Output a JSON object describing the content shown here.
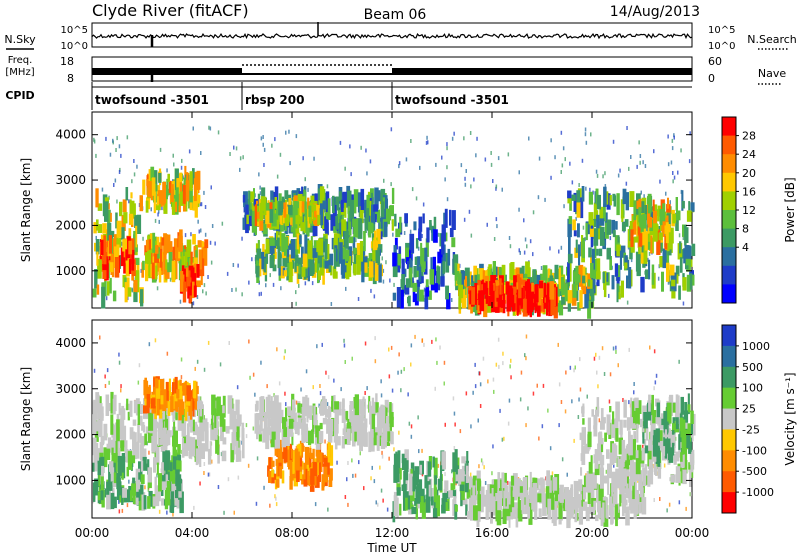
{
  "header": {
    "title": "Clyde River (fitACF)",
    "beam": "Beam 06",
    "date": "14/Aug/2013"
  },
  "noise_panel": {
    "left_label": "N.Sky",
    "right_label": "N.Search",
    "left_ticks": [
      "10^5",
      "10^0"
    ],
    "right_ticks": [
      "10^5",
      "10^0"
    ]
  },
  "freq_panel": {
    "left_label_line1": "Freq.",
    "left_label_line2": "[MHz]",
    "right_label": "Nave",
    "left_ticks": [
      "18",
      "8"
    ],
    "right_ticks": [
      "60",
      "0"
    ]
  },
  "cpid": {
    "label": "CPID",
    "segments": [
      {
        "name": "twofsound -3501",
        "start_hour": 0,
        "end_hour": 6
      },
      {
        "name": "rbsp 200",
        "start_hour": 6,
        "end_hour": 12
      },
      {
        "name": "twofsound -3501",
        "start_hour": 12,
        "end_hour": 24
      }
    ]
  },
  "chart_data": [
    {
      "type": "heatmap",
      "name": "power-panel",
      "ylabel": "Slant Range [km]",
      "x_range_hours": [
        0,
        24
      ],
      "y_range_km": [
        180,
        4500
      ],
      "y_ticks": [
        1000,
        2000,
        3000,
        4000
      ],
      "colorbar": {
        "label": "Power [dB]",
        "ticks": [
          "28",
          "24",
          "20",
          "16",
          "12",
          "8",
          "4"
        ],
        "colors": [
          "#ff0000",
          "#ff5a00",
          "#ff8c00",
          "#ffc800",
          "#a0d000",
          "#5cbf3c",
          "#3c9a64",
          "#2a6fa0",
          "#1e3cc8",
          "#0000ff"
        ]
      },
      "regions": [
        {
          "t0": 0.0,
          "t1": 2.0,
          "r0": 400,
          "r1": 2700,
          "level": 0.55
        },
        {
          "t0": 0.3,
          "t1": 1.6,
          "r0": 1000,
          "r1": 1600,
          "level": 0.8
        },
        {
          "t0": 2.0,
          "t1": 4.2,
          "r0": 2400,
          "r1": 3100,
          "level": 0.6
        },
        {
          "t0": 2.0,
          "t1": 4.5,
          "r0": 900,
          "r1": 1700,
          "level": 0.65
        },
        {
          "t0": 3.5,
          "t1": 4.2,
          "r0": 500,
          "r1": 1000,
          "level": 0.9
        },
        {
          "t0": 6.0,
          "t1": 12.0,
          "r0": 1900,
          "r1": 2700,
          "level": 0.35
        },
        {
          "t0": 6.5,
          "t1": 9.0,
          "r0": 2100,
          "r1": 2500,
          "level": 0.6
        },
        {
          "t0": 6.5,
          "t1": 11.5,
          "r0": 900,
          "r1": 1700,
          "level": 0.45
        },
        {
          "t0": 12.0,
          "t1": 14.5,
          "r0": 300,
          "r1": 2200,
          "level": 0.25
        },
        {
          "t0": 14.5,
          "t1": 20.0,
          "r0": 180,
          "r1": 1000,
          "level": 0.5
        },
        {
          "t0": 15.0,
          "t1": 18.5,
          "r0": 180,
          "r1": 700,
          "level": 0.95
        },
        {
          "t0": 19.0,
          "t1": 24.0,
          "r0": 500,
          "r1": 2700,
          "level": 0.4
        },
        {
          "t0": 21.5,
          "t1": 23.0,
          "r0": 1500,
          "r1": 2500,
          "level": 0.65
        }
      ]
    },
    {
      "type": "heatmap",
      "name": "velocity-panel",
      "ylabel": "Slant Range [km]",
      "x_range_hours": [
        0,
        24
      ],
      "y_range_km": [
        180,
        4500
      ],
      "y_ticks": [
        1000,
        2000,
        3000,
        4000
      ],
      "colorbar": {
        "label": "Velocity [m s⁻¹]",
        "ticks": [
          "1000",
          "500",
          "100",
          "25",
          "-25",
          "-100",
          "-500",
          "-1000"
        ],
        "colors": [
          "#1e3cc8",
          "#2a6fa0",
          "#3c9a64",
          "#66cc33",
          "#c8c8c8",
          "#ffc800",
          "#ff8c00",
          "#ff5a00",
          "#ff0000"
        ]
      },
      "regions": [
        {
          "t0": 0.0,
          "t1": 6.0,
          "r0": 1500,
          "r1": 2700,
          "level": "gray"
        },
        {
          "t0": 0.0,
          "t1": 3.5,
          "r0": 500,
          "r1": 1500,
          "level": "green"
        },
        {
          "t0": 2.0,
          "t1": 4.2,
          "r0": 2500,
          "r1": 3100,
          "level": "orange"
        },
        {
          "t0": 7.0,
          "t1": 9.5,
          "r0": 900,
          "r1": 1700,
          "level": "orange"
        },
        {
          "t0": 6.5,
          "t1": 12.0,
          "r0": 1800,
          "r1": 2700,
          "level": "gray"
        },
        {
          "t0": 12.0,
          "t1": 15.0,
          "r0": 300,
          "r1": 1500,
          "level": "green"
        },
        {
          "t0": 15.0,
          "t1": 22.0,
          "r0": 180,
          "r1": 1000,
          "level": "gray"
        },
        {
          "t0": 19.5,
          "t1": 24.0,
          "r0": 1000,
          "r1": 2700,
          "level": "gray"
        },
        {
          "t0": 22.0,
          "t1": 24.0,
          "r0": 1500,
          "r1": 2700,
          "level": "green"
        }
      ]
    }
  ],
  "x_axis": {
    "label": "Time UT",
    "ticks": [
      "00:00",
      "04:00",
      "08:00",
      "12:00",
      "16:00",
      "20:00",
      "00:00"
    ]
  }
}
